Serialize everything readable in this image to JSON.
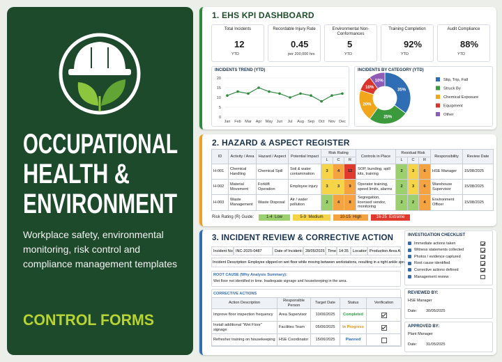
{
  "sidebar": {
    "title_lines": [
      "OCCUPATIONAL",
      "HEALTH &",
      "ENVIRONMENT"
    ],
    "subtitle": "Workplace safety, environmental monitoring, risk control and compliance management templates",
    "tagline": "CONTROL FORMS"
  },
  "kpi_dashboard": {
    "heading": "1. EHS KPI DASHBOARD",
    "cards": [
      {
        "label": "Total Incidents",
        "value": "12",
        "note": "YTD"
      },
      {
        "label": "Recordable Injury Rate",
        "value": "0.45",
        "note": "per 200,000 hrs"
      },
      {
        "label": "Environmental Non-Conformances",
        "value": "5",
        "note": "YTD"
      },
      {
        "label": "Training Completion",
        "value": "92%",
        "note": "YTD"
      },
      {
        "label": "Audit Compliance",
        "value": "88%",
        "note": "YTD"
      }
    ]
  },
  "chart_data": [
    {
      "type": "line",
      "title": "INCIDENTS TREND (YTD)",
      "categories": [
        "Jan",
        "Feb",
        "Mar",
        "Apr",
        "May",
        "Jun",
        "Jul",
        "Aug",
        "Sep",
        "Oct",
        "Nov",
        "Dec"
      ],
      "values": [
        11,
        13,
        12,
        15,
        13,
        12,
        10,
        12,
        11,
        8,
        11,
        12
      ],
      "color": "#2e8b3e",
      "ylim": [
        0,
        20
      ],
      "yticks": [
        0,
        5,
        10,
        15,
        20
      ],
      "grid": true
    },
    {
      "type": "pie",
      "title": "INCIDENTS BY CATEGORY (YTD)",
      "categories": [
        "Slip, Trip, Fall",
        "Struck By",
        "Chemical Exposure",
        "Equipment",
        "Other"
      ],
      "values": [
        35,
        25,
        20,
        10,
        10
      ],
      "value_labels": [
        "35%",
        "25%",
        "20%",
        "10%",
        "10%"
      ],
      "colors": [
        "#2f6db5",
        "#3a9a3c",
        "#f2a71b",
        "#d9352a",
        "#8e5bb5"
      ],
      "legend": "right"
    }
  ],
  "hazard_register": {
    "heading": "2. HAZARD & ASPECT REGISTER",
    "columns": [
      "ID",
      "Activity / Area",
      "Hazard / Aspect",
      "Potential Impact",
      "Risk Rating",
      "Controls in Place",
      "Residual Risk",
      "Responsibility",
      "Review Date"
    ],
    "sub_columns": [
      "L",
      "C",
      "R"
    ],
    "rows": [
      {
        "id": "H-001",
        "activity": "Chemical Handling",
        "hazard": "Chemical Spill",
        "impact": "Soil & water contamination",
        "risk": [
          3,
          4,
          12
        ],
        "controls": "SOP, bunding, spill kits, training",
        "residual": [
          2,
          3,
          6
        ],
        "responsibility": "HSE Manager",
        "review_date": "15/08/2025"
      },
      {
        "id": "H-002",
        "activity": "Material Movement",
        "hazard": "Forklift Operation",
        "impact": "Employee injury",
        "risk": [
          3,
          3,
          9
        ],
        "controls": "Operator training, speed limits, alarms",
        "residual": [
          2,
          3,
          6
        ],
        "responsibility": "Warehouse Supervisor",
        "review_date": "15/08/2025"
      },
      {
        "id": "H-003",
        "activity": "Waste Management",
        "hazard": "Waste Disposal",
        "impact": "Air / water pollution",
        "risk": [
          2,
          4,
          8
        ],
        "controls": "Segregation, licensed vendor, monitoring",
        "residual": [
          2,
          2,
          4
        ],
        "responsibility": "Environment Officer",
        "review_date": "15/08/2025"
      }
    ],
    "guide_label": "Risk Rating (R) Guide:",
    "guide": [
      {
        "label": "1-4  Low",
        "color": "#9ccf6e"
      },
      {
        "label": "5-9  Medium",
        "color": "#f5d547"
      },
      {
        "label": "10-15  High",
        "color": "#f4a340"
      },
      {
        "label": "16-25  Extreme",
        "color": "#e0392d"
      }
    ]
  },
  "incident_review": {
    "heading": "3. INCIDENT REVIEW & CORRECTIVE ACTION",
    "fields": [
      {
        "label": "Incident No.:",
        "value": "INC-2025-0487"
      },
      {
        "label": "Date of Incident:",
        "value": "28/05/2025"
      },
      {
        "label": "Time:",
        "value": "14:35"
      },
      {
        "label": "Location:",
        "value": "Production Area A"
      }
    ],
    "description": {
      "label": "Incident Description:",
      "value": "Employee slipped on wet floor while moving between workstations, resulting in a right ankle sprain."
    },
    "root_cause": {
      "label": "ROOT CAUSE (Why Analysis Summary):",
      "value": "Wet floor not identified in time. Inadequate signage and housekeeping in the area."
    },
    "corrective_actions": {
      "label": "CORRECTIVE ACTIONS",
      "columns": [
        "Action Description",
        "Responsible Person",
        "Target Date",
        "Status",
        "Verification"
      ],
      "rows": [
        {
          "action": "Improve floor inspection frequency",
          "person": "Area Supervisor",
          "target_date": "10/06/2025",
          "status": "Completed",
          "status_color": "#2e9a3e",
          "verified": true
        },
        {
          "action": "Install additional \"Wet Floor\" signage",
          "person": "Facilities Team",
          "target_date": "05/06/2025",
          "status": "In Progress",
          "status_color": "#e8900c",
          "verified": true
        },
        {
          "action": "Refresher training on housekeeping",
          "person": "HSE Coordinator",
          "target_date": "15/06/2025",
          "status": "Planned",
          "status_color": "#2f6db5",
          "verified": false
        }
      ]
    },
    "checklist": {
      "label": "INVESTIGATION CHECKLIST",
      "items": [
        {
          "text": "Immediate actions taken",
          "checked": true
        },
        {
          "text": "Witness statements collected",
          "checked": true
        },
        {
          "text": "Photos / evidence captured",
          "checked": true
        },
        {
          "text": "Root cause identified",
          "checked": true
        },
        {
          "text": "Corrective actions defined",
          "checked": true
        },
        {
          "text": "Management review",
          "checked": false
        }
      ]
    },
    "reviewed_by": {
      "label": "REVIEWED BY:",
      "role": "HSE Manager",
      "date_label": "Date:",
      "date": "30/05/2025"
    },
    "approved_by": {
      "label": "APPROVED BY:",
      "role": "Plant Manager",
      "date_label": "Date:",
      "date": "31/05/2025"
    }
  }
}
